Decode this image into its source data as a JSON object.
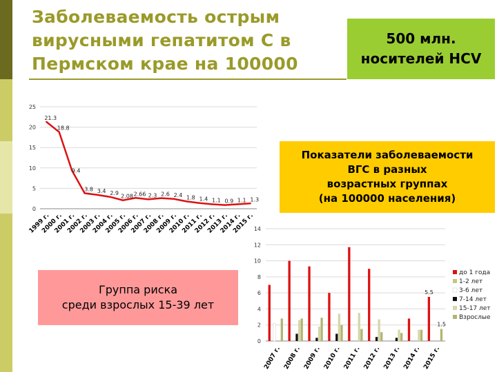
{
  "page": {
    "title": "Заболеваемость острым вирусными гепатитом  С в Пермском крае на 100000",
    "hcv_box": "500 млн.\nносителей HCV",
    "age_box": "Показатели заболеваемости\nВГС в разных\nвозрастных группах\n(на 100000 населения)",
    "risk_box": "Группа риска\nсреди взрослых 15-39 лет",
    "colors": {
      "title": "#9a9a2a",
      "hcv_box": "#9acd32",
      "age_box": "#ffcc00",
      "risk_box": "#ff9999",
      "sidebar": [
        "#6b6b1f",
        "#cccc66",
        "#e6e6a8",
        "#cccc66"
      ]
    }
  },
  "chart_data": [
    {
      "type": "line",
      "categories": [
        "1999 г.",
        "2000 г.",
        "2001 г.",
        "2002 г.",
        "2003 г.",
        "2004 г.",
        "2005 г.",
        "2006 г.",
        "2007 г.",
        "2008 г.",
        "2009 г.",
        "2010 г.",
        "2011 г.",
        "2012 г.",
        "2013 г.",
        "2014 г.",
        "2015 г."
      ],
      "series": [
        {
          "values": [
            21.3,
            18.8,
            9.4,
            3.8,
            3.4,
            2.9,
            2.08,
            2.66,
            2.3,
            2.6,
            2.4,
            1.8,
            1.4,
            1.1,
            0.9,
            1.1,
            1.3
          ],
          "labels": [
            "21.3",
            "18.8",
            "9.4",
            "3.8",
            "3.4",
            "2.9",
            "2.08",
            "2.66",
            "2.3",
            "2.6",
            "2.4",
            "1.8",
            "1.4",
            "1.1",
            "0.9",
            "1.1",
            "1.3"
          ],
          "color": "#dd1111"
        }
      ],
      "yticks": [
        "0",
        "5",
        "10",
        "15",
        "20",
        "25"
      ],
      "ylim": [
        0,
        25
      ],
      "grid": true,
      "legend": "none"
    },
    {
      "type": "bar",
      "categories": [
        "2007 г.",
        "2008 г.",
        "2009 г.",
        "2010 г.",
        "2011 г.",
        "2012 г.",
        "2013 г.",
        "2014 г.",
        "2015 г."
      ],
      "series": [
        {
          "name": "до 1 года",
          "color": "#dd1111",
          "values": [
            7.0,
            10.0,
            9.3,
            6.0,
            11.7,
            9.0,
            0,
            2.8,
            5.5
          ]
        },
        {
          "name": "1-2 лет",
          "color": "#c6c67a",
          "values": [
            0,
            0,
            0,
            0,
            0,
            0,
            0,
            0,
            0
          ]
        },
        {
          "name": "3-6 лет",
          "color": "#ffffff",
          "values": [
            2.2,
            0,
            0,
            0,
            0,
            0,
            0,
            0,
            0
          ]
        },
        {
          "name": "7-14 лет",
          "color": "#111111",
          "values": [
            0,
            0.9,
            0.4,
            0.9,
            0,
            0.5,
            0.4,
            0,
            0
          ]
        },
        {
          "name": "15-17 лет",
          "color": "#d6d6aa",
          "values": [
            0,
            2.6,
            1.8,
            3.4,
            3.5,
            2.7,
            1.4,
            1.4,
            0
          ]
        },
        {
          "name": "Взрослые",
          "color": "#b4b470",
          "values": [
            2.8,
            2.8,
            2.9,
            2.0,
            1.5,
            1.1,
            1.0,
            1.4,
            1.5
          ]
        }
      ],
      "annotations": [
        {
          "category": "2015 г.",
          "series": "до 1 года",
          "label": "5.5"
        },
        {
          "category": "2015 г.",
          "series": "Взрослые",
          "label": "1.5"
        }
      ],
      "yticks": [
        "0",
        "2",
        "4",
        "6",
        "8",
        "10",
        "12",
        "14"
      ],
      "ylim": [
        0,
        14
      ],
      "grid": true,
      "legend": "right"
    }
  ]
}
